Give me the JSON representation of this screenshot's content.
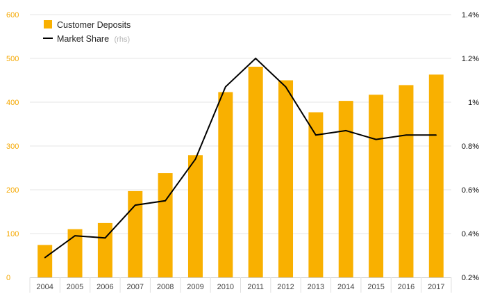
{
  "chart_data": {
    "type": "bar",
    "categories": [
      "2004",
      "2005",
      "2006",
      "2007",
      "2008",
      "2009",
      "2010",
      "2011",
      "2012",
      "2013",
      "2014",
      "2015",
      "2016",
      "2017"
    ],
    "series": [
      {
        "name": "Customer Deposits",
        "type": "bar",
        "axis": "left",
        "color": "#f9b000",
        "values": [
          74,
          110,
          124,
          197,
          238,
          279,
          423,
          481,
          450,
          377,
          403,
          417,
          439,
          463
        ]
      },
      {
        "name": "Market Share",
        "name_suffix": "(rhs)",
        "type": "line",
        "axis": "right",
        "color": "#000000",
        "values": [
          0.29,
          0.39,
          0.38,
          0.53,
          0.55,
          0.74,
          1.07,
          1.2,
          1.07,
          0.85,
          0.87,
          0.83,
          0.85,
          0.85
        ]
      }
    ],
    "y_left": {
      "min": 0,
      "max": 600,
      "ticks": [
        "0",
        "100",
        "200",
        "300",
        "400",
        "500",
        "600"
      ]
    },
    "y_right": {
      "min": 0.2,
      "max": 1.4,
      "ticks": [
        "0.2%",
        "0.4%",
        "0.6%",
        "0.8%",
        "1%",
        "1.2%",
        "1.4%"
      ]
    },
    "legend_position": "top-left",
    "grid": true
  }
}
